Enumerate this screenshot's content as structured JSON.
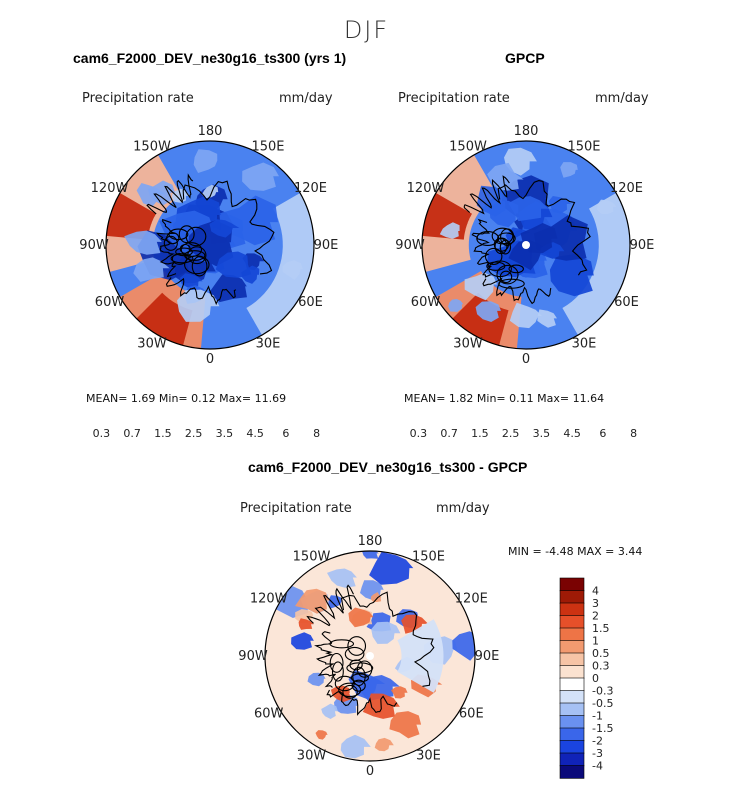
{
  "season": "DJF",
  "diff_title": "cam6_F2000_DEV_ne30g16_ts300 - GPCP",
  "panels": [
    {
      "title": "cam6_F2000_DEV_ne30g16_ts300 (yrs 1)",
      "field": "Precipitation rate",
      "units": "mm/day",
      "stats": "MEAN=    1.69  Min=    0.12  Max=   11.69"
    },
    {
      "title": "GPCP",
      "field": "Precipitation rate",
      "units": "mm/day",
      "stats": "MEAN=    1.82  Min=    0.11  Max=   11.64"
    },
    {
      "field": "Precipitation rate",
      "units": "mm/day",
      "stats": "MIN =   -4.48  MAX =    3.44"
    }
  ],
  "lon_labels": [
    "180",
    "150E",
    "120E",
    "90E",
    "60E",
    "30E",
    "0",
    "30W",
    "60W",
    "90W",
    "120W",
    "150W"
  ],
  "colors": {
    "abs_scale": [
      "#08107a",
      "#0b2fb0",
      "#1447d6",
      "#2a63e8",
      "#4a82f0",
      "#7ea6f3",
      "#b4cdf5",
      "#ffffff",
      "#f9d9c6",
      "#f6b597",
      "#f28b62",
      "#ec5e33",
      "#e0401c",
      "#c52a10",
      "#a01508",
      "#7a0404"
    ],
    "diff_scale": [
      "#0b0a7a",
      "#1023b8",
      "#1a44e0",
      "#3a66ea",
      "#6a91f0",
      "#a6c1f4",
      "#d4e2f8",
      "#ffffff",
      "#fbe2d0",
      "#f6c4a6",
      "#f29a70",
      "#ee7446",
      "#e6502a",
      "#cc3212",
      "#9e1a06",
      "#7a0202"
    ]
  },
  "chart_data": [
    {
      "type": "heatmap",
      "title": "cam6_F2000_DEV_ne30g16_ts300 (yrs 1)",
      "projection": "north polar stereographic",
      "variable": "Precipitation rate",
      "units": "mm/day",
      "mean": 1.69,
      "min": 0.12,
      "max": 11.69,
      "colorbar_ticks": [
        "0.3",
        "0.7",
        "1.5",
        "2.5",
        "3.5",
        "4.5",
        "6",
        "8"
      ]
    },
    {
      "type": "heatmap",
      "title": "GPCP",
      "projection": "north polar stereographic",
      "variable": "Precipitation rate",
      "units": "mm/day",
      "mean": 1.82,
      "min": 0.11,
      "max": 11.64,
      "colorbar_ticks": [
        "0.3",
        "0.7",
        "1.5",
        "2.5",
        "3.5",
        "4.5",
        "6",
        "8"
      ]
    },
    {
      "type": "heatmap",
      "title": "cam6_F2000_DEV_ne30g16_ts300 - GPCP",
      "projection": "north polar stereographic",
      "variable": "Precipitation rate",
      "units": "mm/day",
      "min": -4.48,
      "max": 3.44,
      "colorbar_ticks": [
        "4",
        "3",
        "2",
        "1.5",
        "1",
        "0.5",
        "0.3",
        "0",
        "-0.3",
        "-0.5",
        "-1",
        "-1.5",
        "-2",
        "-3",
        "-4"
      ]
    }
  ]
}
